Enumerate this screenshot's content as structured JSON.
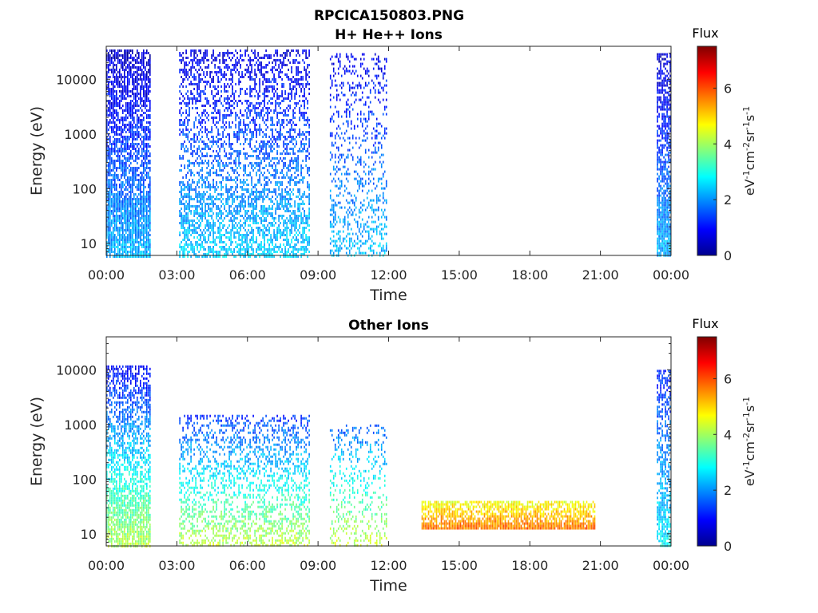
{
  "figure": {
    "title": "RPCICA150803.PNG"
  },
  "chart_data": [
    {
      "type": "heatmap",
      "title": "H+ He++ Ions",
      "xlabel": "Time",
      "ylabel": "Energy (eV)",
      "y_scale": "log",
      "xlim_hours": [
        0,
        24
      ],
      "ylim": [
        6,
        40000
      ],
      "x_tick_labels": [
        "00:00",
        "03:00",
        "06:00",
        "09:00",
        "12:00",
        "15:00",
        "18:00",
        "21:00",
        "00:00"
      ],
      "y_tick_values": [
        10,
        100,
        1000,
        10000
      ],
      "y_tick_labels": [
        "10",
        "100",
        "1000",
        "10000"
      ],
      "colorbar": {
        "title": "Flux",
        "label": "eV-1cm-2sr-1s-1",
        "range": [
          0,
          7.5
        ],
        "tick_values": [
          0,
          2,
          4,
          6
        ],
        "tick_labels": [
          "0",
          "2",
          "4",
          "6"
        ]
      },
      "data_blocks": [
        {
          "t_start_h": 0.0,
          "t_end_h": 1.9,
          "e_min": 6,
          "e_max": 35000,
          "flux_low_energy": 2.3,
          "flux_high_energy": 0.5,
          "density": 0.9
        },
        {
          "t_start_h": 3.1,
          "t_end_h": 8.6,
          "e_min": 6,
          "e_max": 35000,
          "flux_low_energy": 2.5,
          "flux_high_energy": 0.7,
          "density": 0.55
        },
        {
          "t_start_h": 9.5,
          "t_end_h": 11.9,
          "e_min": 6,
          "e_max": 30000,
          "flux_low_energy": 2.4,
          "flux_high_energy": 0.8,
          "density": 0.3
        },
        {
          "t_start_h": 23.4,
          "t_end_h": 24.0,
          "e_min": 6,
          "e_max": 30000,
          "flux_low_energy": 2.3,
          "flux_high_energy": 0.6,
          "density": 0.9
        }
      ]
    },
    {
      "type": "heatmap",
      "title": "Other Ions",
      "xlabel": "Time",
      "ylabel": "Energy (eV)",
      "y_scale": "log",
      "xlim_hours": [
        0,
        24
      ],
      "ylim": [
        6,
        40000
      ],
      "x_tick_labels": [
        "00:00",
        "03:00",
        "06:00",
        "09:00",
        "12:00",
        "15:00",
        "18:00",
        "21:00",
        "00:00"
      ],
      "y_tick_values": [
        10,
        100,
        1000,
        10000
      ],
      "y_tick_labels": [
        "10",
        "100",
        "1000",
        "10000"
      ],
      "colorbar": {
        "title": "Flux",
        "label": "eV-1cm-2sr-1s-1",
        "range": [
          0,
          7.5
        ],
        "tick_values": [
          0,
          2,
          4,
          6
        ],
        "tick_labels": [
          "0",
          "2",
          "4",
          "6"
        ]
      },
      "data_blocks": [
        {
          "t_start_h": 0.0,
          "t_end_h": 1.9,
          "e_min": 6,
          "e_max": 12000,
          "flux_low_energy": 4.2,
          "flux_high_energy": 0.9,
          "density": 0.75
        },
        {
          "t_start_h": 3.1,
          "t_end_h": 8.6,
          "e_min": 6,
          "e_max": 1500,
          "flux_low_energy": 4.3,
          "flux_high_energy": 1.3,
          "density": 0.45
        },
        {
          "t_start_h": 9.5,
          "t_end_h": 11.9,
          "e_min": 6,
          "e_max": 1000,
          "flux_low_energy": 4.4,
          "flux_high_energy": 1.6,
          "density": 0.3
        },
        {
          "t_start_h": 13.4,
          "t_end_h": 20.8,
          "e_min": 12,
          "e_max": 40,
          "flux_low_energy": 5.8,
          "flux_high_energy": 4.6,
          "density": 0.95
        },
        {
          "t_start_h": 23.4,
          "t_end_h": 24.0,
          "e_min": 6,
          "e_max": 10000,
          "flux_low_energy": 2.8,
          "flux_high_energy": 1.2,
          "density": 0.7
        }
      ]
    }
  ]
}
